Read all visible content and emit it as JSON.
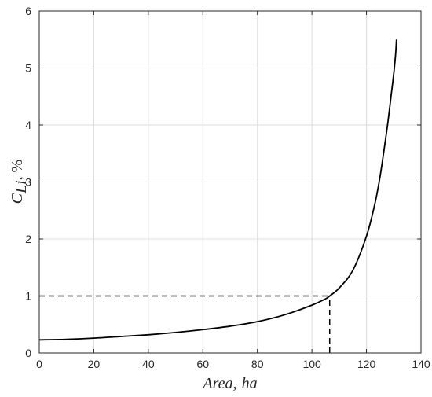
{
  "chart_data": {
    "type": "line",
    "title": "",
    "xlabel": {
      "main": "Area,",
      "unit": "ha"
    },
    "ylabel": {
      "symbol": "C",
      "subscript": "Li",
      "unit": ", %"
    },
    "xlim": [
      0,
      140
    ],
    "ylim": [
      0,
      6
    ],
    "xticks": [
      "0",
      "20",
      "40",
      "60",
      "80",
      "100",
      "120",
      "140"
    ],
    "yticks": [
      "0",
      "1",
      "2",
      "3",
      "4",
      "5",
      "6"
    ],
    "grid": true,
    "series": [
      {
        "style": "solid",
        "color": "#000000",
        "x": [
          0,
          10,
          20,
          30,
          40,
          50,
          60,
          70,
          80,
          90,
          100,
          105,
          106.5,
          110,
          115,
          120,
          123,
          125,
          127,
          128,
          129,
          130,
          130.7,
          131
        ],
        "y": [
          0.23,
          0.24,
          0.26,
          0.29,
          0.32,
          0.36,
          0.41,
          0.47,
          0.55,
          0.67,
          0.84,
          0.95,
          1.0,
          1.14,
          1.45,
          2.05,
          2.6,
          3.1,
          3.75,
          4.1,
          4.5,
          4.9,
          5.25,
          5.5
        ]
      }
    ],
    "reference_lines": [
      {
        "style": "dashed",
        "color": "#000000",
        "x": [
          0,
          106.5
        ],
        "y": [
          1.0,
          1.0
        ]
      },
      {
        "style": "dashed",
        "color": "#000000",
        "x": [
          106.5,
          106.5
        ],
        "y": [
          0,
          1.0
        ]
      }
    ]
  }
}
